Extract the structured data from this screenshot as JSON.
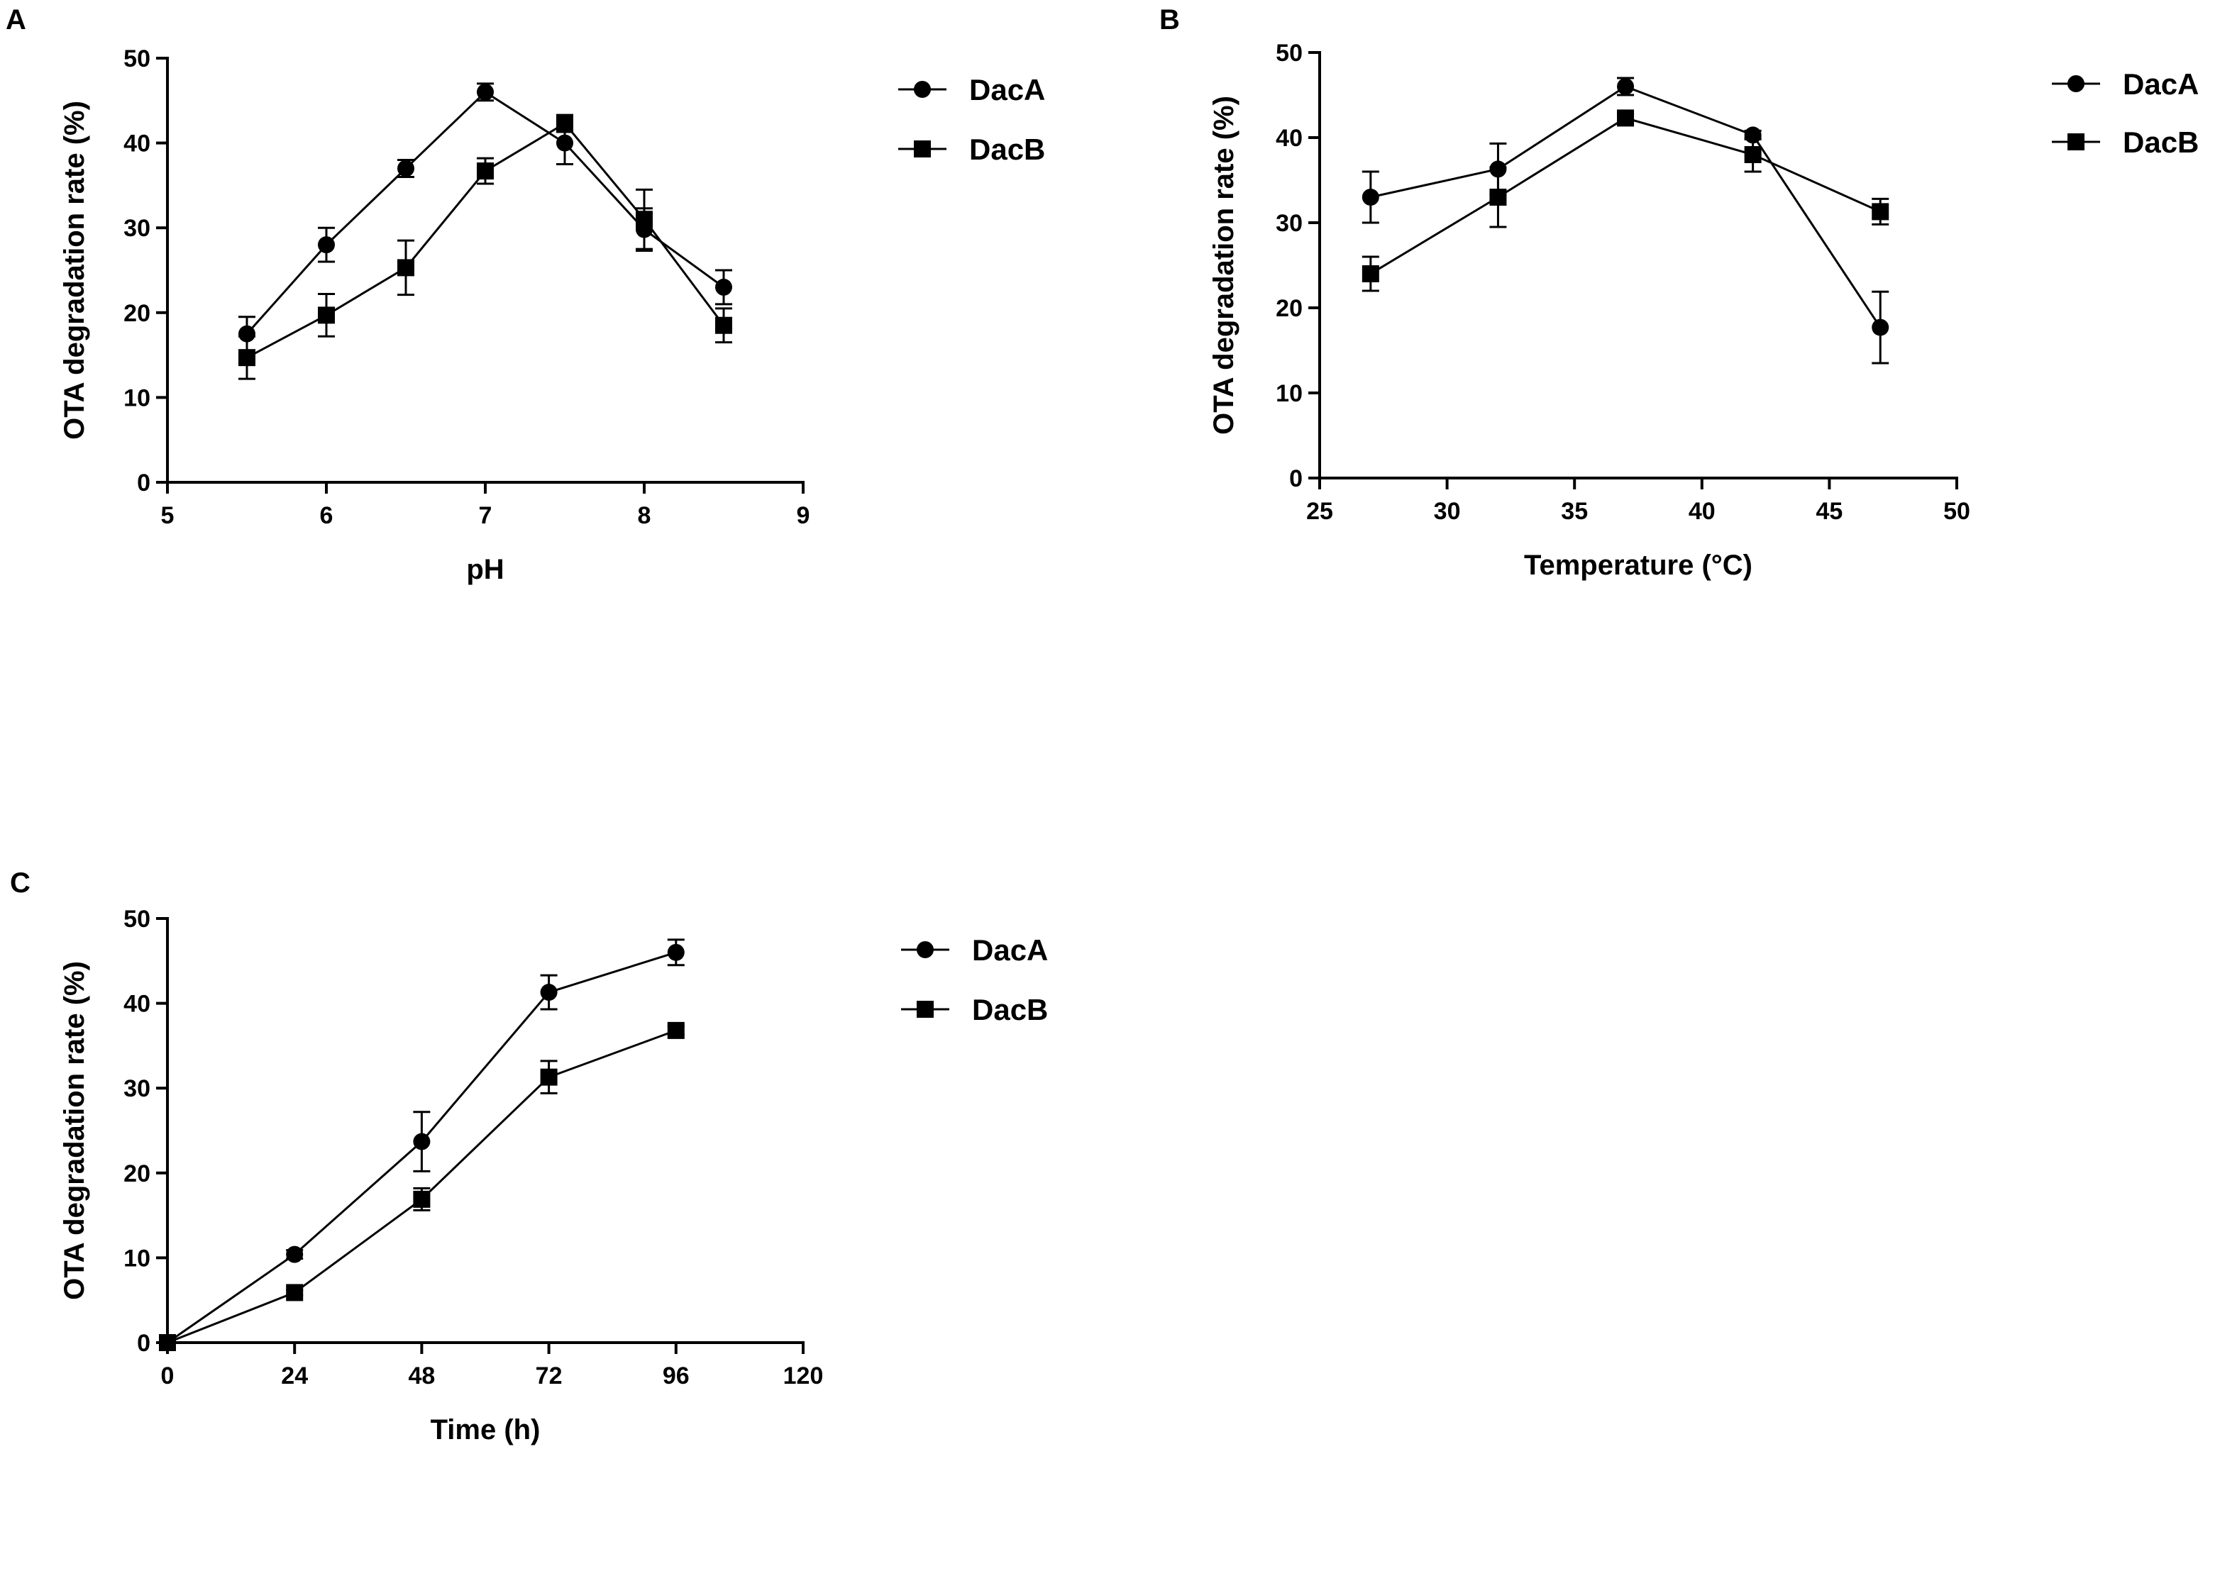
{
  "chart_data": [
    {
      "panel_label": "A",
      "type": "line",
      "title": "",
      "xlabel": "pH",
      "ylabel": "OTA degradation rate (%)",
      "xlim": [
        5,
        9
      ],
      "ylim": [
        0,
        50
      ],
      "xticks": [
        "5",
        "6",
        "7",
        "8",
        "9"
      ],
      "yticks": [
        "0",
        "10",
        "20",
        "30",
        "40",
        "50"
      ],
      "legend": "top-right",
      "series": [
        {
          "name": "DacA",
          "marker": "circle",
          "x": [
            5.5,
            6,
            6.5,
            7,
            7.5,
            8,
            8.5
          ],
          "y": [
            17.5,
            28,
            37,
            46,
            40,
            29.8,
            23
          ],
          "err": [
            2,
            2,
            1,
            1,
            2.5,
            2.5,
            2
          ]
        },
        {
          "name": "DacB",
          "marker": "square",
          "x": [
            5.5,
            6,
            6.5,
            7,
            7.5,
            8,
            8.5
          ],
          "y": [
            14.7,
            19.7,
            25.3,
            36.7,
            42.3,
            31,
            18.5
          ],
          "err": [
            2.5,
            2.5,
            3.2,
            1.5,
            1,
            3.5,
            2
          ]
        }
      ]
    },
    {
      "panel_label": "B",
      "type": "line",
      "title": "",
      "xlabel": "Temperature (°C)",
      "ylabel": "OTA degradation rate (%)",
      "xlim": [
        25,
        50
      ],
      "ylim": [
        0,
        50
      ],
      "xticks": [
        "25",
        "30",
        "35",
        "40",
        "45",
        "50"
      ],
      "yticks": [
        "0",
        "10",
        "20",
        "30",
        "40",
        "50"
      ],
      "legend": "top-right",
      "series": [
        {
          "name": "DacA",
          "marker": "circle",
          "x": [
            27,
            32,
            37,
            42,
            47
          ],
          "y": [
            33,
            36.3,
            46,
            40.3,
            17.7
          ],
          "err": [
            3,
            3,
            1,
            0.5,
            4.2
          ]
        },
        {
          "name": "DacB",
          "marker": "square",
          "x": [
            27,
            32,
            37,
            42,
            47
          ],
          "y": [
            24,
            33,
            42.3,
            38,
            31.3
          ],
          "err": [
            2,
            3.5,
            0.5,
            2,
            1.5
          ]
        }
      ]
    },
    {
      "panel_label": "C",
      "type": "line",
      "title": "",
      "xlabel": "Time (h)",
      "ylabel": "OTA degradation rate (%)",
      "xlim": [
        0,
        120
      ],
      "ylim": [
        0,
        50
      ],
      "xticks": [
        "0",
        "24",
        "48",
        "72",
        "96",
        "120"
      ],
      "yticks": [
        "0",
        "10",
        "20",
        "30",
        "40",
        "50"
      ],
      "legend": "top-right",
      "series": [
        {
          "name": "DacA",
          "marker": "circle",
          "x": [
            0,
            24,
            48,
            72,
            96
          ],
          "y": [
            0,
            10.4,
            23.7,
            41.3,
            46
          ],
          "err": [
            0,
            0.5,
            3.5,
            2,
            1.5
          ]
        },
        {
          "name": "DacB",
          "marker": "square",
          "x": [
            0,
            24,
            48,
            72,
            96
          ],
          "y": [
            0,
            5.9,
            16.9,
            31.3,
            36.8
          ],
          "err": [
            0,
            0.3,
            1.3,
            1.9,
            0.5
          ]
        }
      ]
    }
  ]
}
